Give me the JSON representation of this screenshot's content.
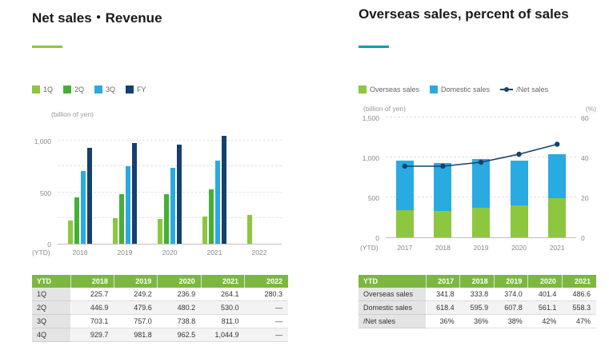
{
  "left_panel": {
    "title": "Net sales・Revenue",
    "unit_label": "(billion of yen)",
    "ytd_axis_label": "(YTD)",
    "table": {
      "header": [
        "YTD",
        "2018",
        "2019",
        "2020",
        "2021",
        "2022"
      ],
      "rows": [
        {
          "label": "1Q",
          "values": [
            "225.7",
            "249.2",
            "236.9",
            "264.1",
            "280.3"
          ]
        },
        {
          "label": "2Q",
          "values": [
            "446.9",
            "479.6",
            "480.2",
            "530.0",
            "—"
          ]
        },
        {
          "label": "3Q",
          "values": [
            "703.1",
            "757.0",
            "738.8",
            "811.0",
            "—"
          ]
        },
        {
          "label": "4Q",
          "values": [
            "929.7",
            "981.8",
            "962.5",
            "1,044.9",
            "—"
          ]
        }
      ]
    }
  },
  "right_panel": {
    "title": "Overseas sales, percent of sales",
    "unit_label_left": "(billion of yen)",
    "unit_label_right": "(%)",
    "ytd_axis_label": "(YTD)",
    "table": {
      "header": [
        "YTD",
        "2017",
        "2018",
        "2019",
        "2020",
        "2021"
      ],
      "rows": [
        {
          "label": "Overseas sales",
          "values": [
            "341.8",
            "333.8",
            "374.0",
            "401.4",
            "486.6"
          ]
        },
        {
          "label": "Domestic sales",
          "values": [
            "618.4",
            "595.9",
            "607.8",
            "561.1",
            "558.3"
          ]
        },
        {
          "label": "/Net sales",
          "values": [
            "36%",
            "36%",
            "38%",
            "42%",
            "47%"
          ]
        }
      ]
    }
  },
  "colors": {
    "accent_left": "#8dc63f",
    "accent_right": "#00a1b0",
    "green_light": "#8dc63f",
    "green_mid": "#45b035",
    "cyan": "#29abe2",
    "navy": "#16406e",
    "table_header_bg": "#7cb740"
  },
  "chart_data": [
    {
      "type": "bar",
      "title": "Net sales・Revenue",
      "categories": [
        "2018",
        "2019",
        "2020",
        "2021",
        "2022"
      ],
      "series": [
        {
          "name": "1Q",
          "kind": "bar",
          "color": "#8dc63f",
          "values": [
            225.7,
            249.2,
            236.9,
            264.1,
            280.3
          ]
        },
        {
          "name": "2Q",
          "kind": "bar",
          "color": "#45b035",
          "values": [
            446.9,
            479.6,
            480.2,
            530.0,
            null
          ]
        },
        {
          "name": "3Q",
          "kind": "bar",
          "color": "#29abe2",
          "values": [
            703.1,
            757.0,
            738.8,
            811.0,
            null
          ]
        },
        {
          "name": "FY",
          "kind": "bar",
          "color": "#16406e",
          "values": [
            929.7,
            981.8,
            962.5,
            1044.9,
            null
          ]
        }
      ],
      "xlabel": "(YTD)",
      "ylabel": "(billion of yen)",
      "ylim": [
        0,
        1180
      ],
      "yticks": [
        0,
        500,
        1000
      ],
      "grid_step": 250,
      "grid": true,
      "legend_position": "top"
    },
    {
      "type": "bar",
      "subtype": "stacked-bars-with-line",
      "title": "Overseas sales, percent of sales",
      "categories": [
        "2017",
        "2018",
        "2019",
        "2020",
        "2021"
      ],
      "series": [
        {
          "name": "Overseas sales",
          "kind": "bar",
          "color": "#8dc63f",
          "values": [
            341.8,
            333.8,
            374.0,
            401.4,
            486.6
          ]
        },
        {
          "name": "Domestic sales",
          "kind": "bar",
          "color": "#29abe2",
          "values": [
            618.4,
            595.9,
            607.8,
            561.1,
            558.3
          ]
        },
        {
          "name": "/Net sales",
          "kind": "line",
          "axis": "right",
          "color": "#16406e",
          "values": [
            36,
            36,
            38,
            42,
            47
          ]
        }
      ],
      "xlabel": "(YTD)",
      "ylabel_left": "(billion of yen)",
      "ylabel_right": "(%)",
      "ylim_left": [
        0,
        1500
      ],
      "ylim_right": [
        0,
        60
      ],
      "yticks_left": [
        0,
        500,
        1000,
        1500
      ],
      "yticks_right": [
        0,
        20,
        40,
        60
      ],
      "grid": true,
      "legend_position": "top"
    }
  ]
}
